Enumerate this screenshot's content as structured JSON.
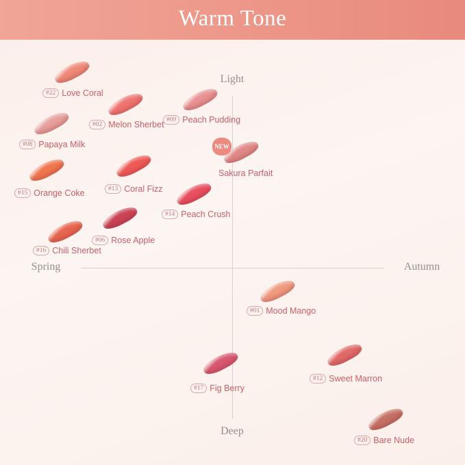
{
  "header": {
    "title": "Warm Tone"
  },
  "axes": {
    "top": "Light",
    "bottom": "Deep",
    "left": "Spring",
    "right": "Autumn"
  },
  "badge": "NEW",
  "products": [
    {
      "number": "#22",
      "name": "Love Coral",
      "color": "#ef8a78"
    },
    {
      "number": "#02",
      "name": "Melon Sherbet",
      "color": "#ef7470"
    },
    {
      "number": "#09",
      "name": "Peach Pudding",
      "color": "#e99294"
    },
    {
      "number": "#08",
      "name": "Papaya Milk",
      "color": "#e7a09c"
    },
    {
      "number": "",
      "name": "Sakura Parfait",
      "color": "#e08a88"
    },
    {
      "number": "#15",
      "name": "Orange Coke",
      "color": "#f0764f"
    },
    {
      "number": "#13",
      "name": "Coral Fizz",
      "color": "#ef5a55"
    },
    {
      "number": "#14",
      "name": "Peach Crush",
      "color": "#e84f5f"
    },
    {
      "number": "#06",
      "name": "Rose Apple",
      "color": "#c94456"
    },
    {
      "number": "#16",
      "name": "Chili Sherbet",
      "color": "#e8664f"
    },
    {
      "number": "#01",
      "name": "Mood Mango",
      "color": "#f09a80"
    },
    {
      "number": "#17",
      "name": "Fig Berry",
      "color": "#d75870"
    },
    {
      "number": "#12",
      "name": "Sweet Marron",
      "color": "#e06a68"
    },
    {
      "number": "#20",
      "name": "Bare Nude",
      "color": "#c57064"
    }
  ]
}
